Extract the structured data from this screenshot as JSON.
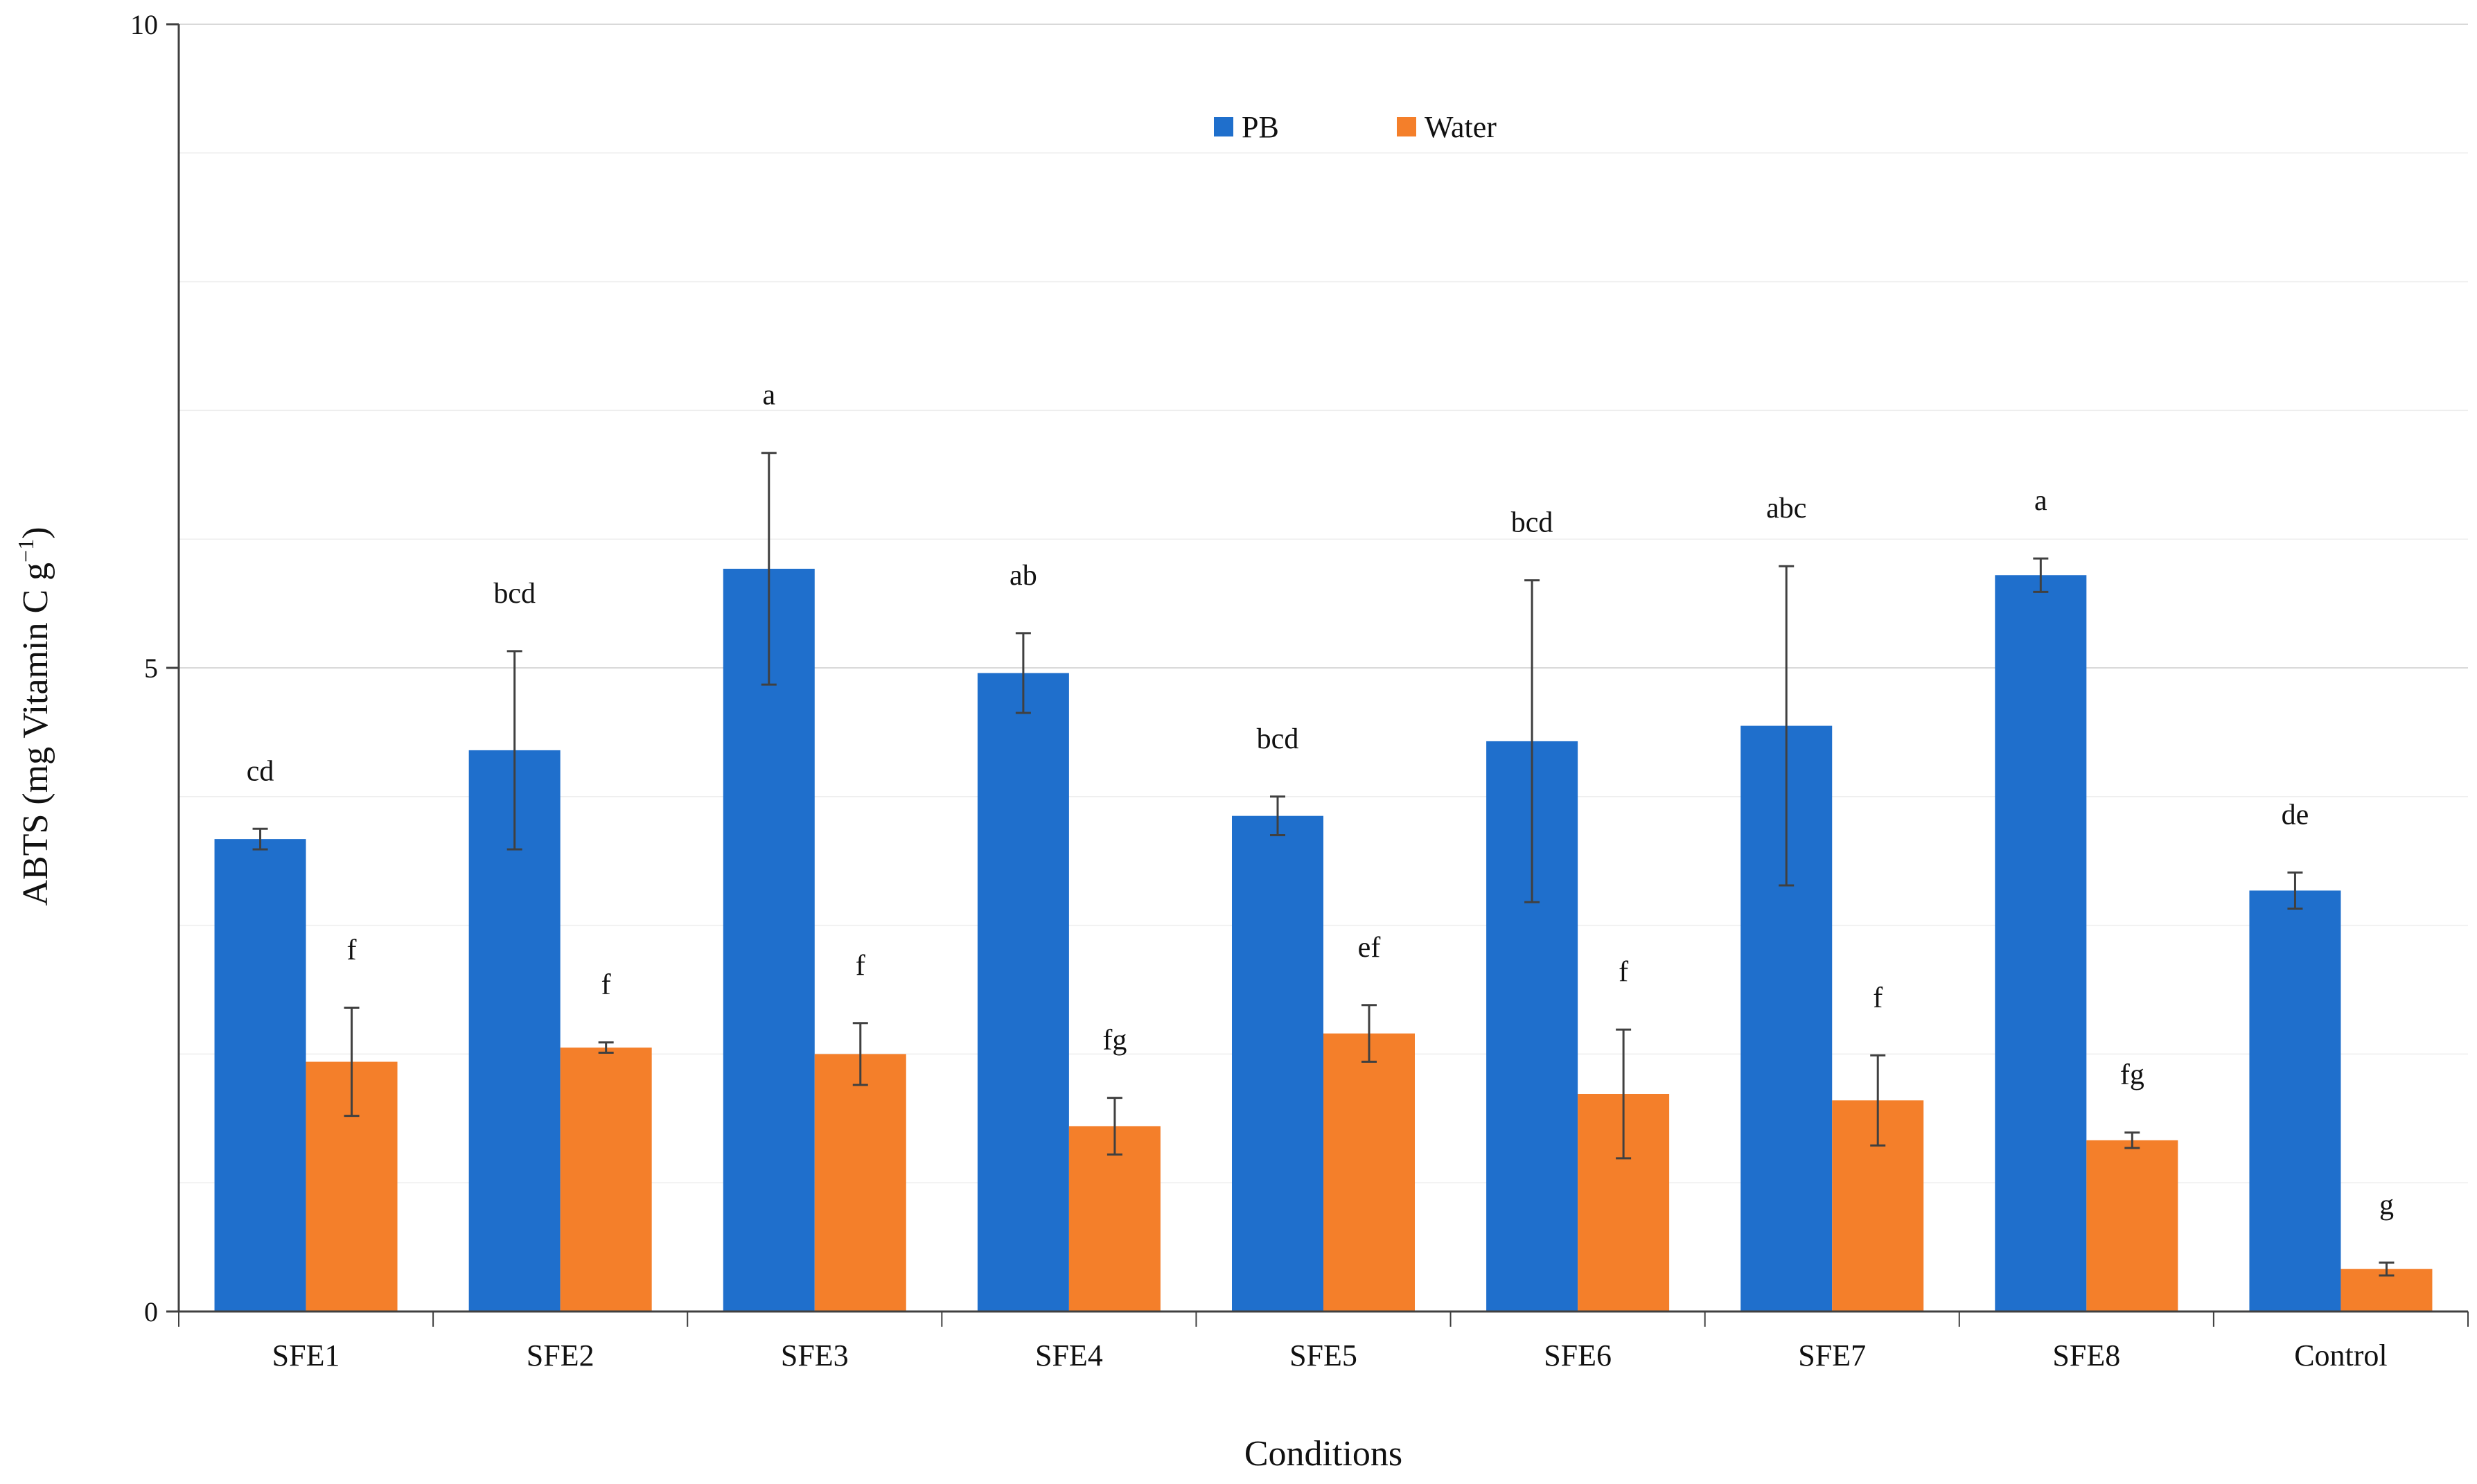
{
  "chart_data": {
    "type": "bar",
    "categories": [
      "SFE1",
      "SFE2",
      "SFE3",
      "SFE4",
      "SFE5",
      "SFE6",
      "SFE7",
      "SFE8",
      "Control"
    ],
    "series": [
      {
        "name": "PB",
        "color": "#1f6fcc",
        "values": [
          3.67,
          4.36,
          5.77,
          4.96,
          3.85,
          4.43,
          4.55,
          5.72,
          3.27
        ],
        "errors": [
          0.08,
          0.77,
          0.9,
          0.31,
          0.15,
          1.25,
          1.24,
          0.13,
          0.14
        ],
        "letters": [
          "cd",
          "bcd",
          "a",
          "ab",
          "bcd",
          "bcd",
          "abc",
          "a",
          "de"
        ]
      },
      {
        "name": "Water",
        "color": "#f47f2a",
        "values": [
          1.94,
          2.05,
          2.0,
          1.44,
          2.16,
          1.69,
          1.64,
          1.33,
          0.33
        ],
        "errors": [
          0.42,
          0.04,
          0.24,
          0.22,
          0.22,
          0.5,
          0.35,
          0.06,
          0.05
        ],
        "letters": [
          "f",
          "f",
          "f",
          "fg",
          "ef",
          "f",
          "f",
          "fg",
          "g"
        ]
      }
    ],
    "xlabel": "Conditions",
    "ylabel": "ABTS (mg Vitamin C g",
    "ylabel_sup": "−1",
    "ylabel_close": ")",
    "ylim": [
      0,
      10
    ],
    "yticks": [
      0,
      5,
      10
    ],
    "grid": true,
    "legend": "top-center"
  }
}
